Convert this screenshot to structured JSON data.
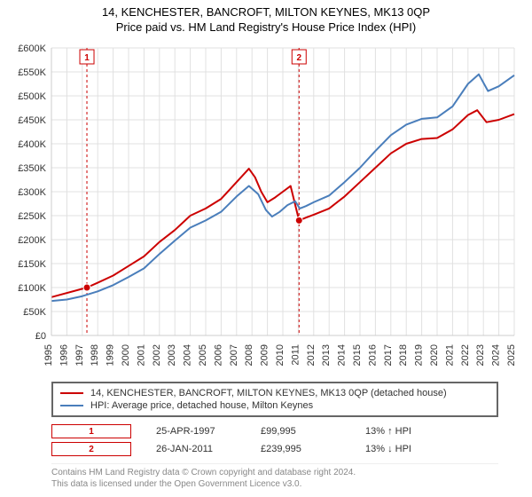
{
  "title": {
    "line1": "14, KENCHESTER, BANCROFT, MILTON KEYNES, MK13 0QP",
    "line2": "Price paid vs. HM Land Registry's House Price Index (HPI)"
  },
  "chart": {
    "type": "line",
    "background_color": "#ffffff",
    "plot_bg": "#ffffff",
    "grid_color": "#e0e0e0",
    "axis_color": "#cccccc",
    "xlim": [
      1995,
      2025
    ],
    "ylim": [
      0,
      600000
    ],
    "ytick_step": 50000,
    "yticks_labels": [
      "£0",
      "£50K",
      "£100K",
      "£150K",
      "£200K",
      "£250K",
      "£300K",
      "£350K",
      "£400K",
      "£450K",
      "£500K",
      "£550K",
      "£600K"
    ],
    "xticks": [
      1995,
      1996,
      1997,
      1998,
      1999,
      2000,
      2001,
      2002,
      2003,
      2004,
      2005,
      2006,
      2007,
      2008,
      2009,
      2010,
      2011,
      2012,
      2013,
      2014,
      2015,
      2016,
      2017,
      2018,
      2019,
      2020,
      2021,
      2022,
      2023,
      2024,
      2025
    ],
    "label_fontsize": 11,
    "line_width": 2,
    "series": [
      {
        "name": "price_paid",
        "color": "#cc0000",
        "points": [
          [
            1995,
            80000
          ],
          [
            1997.3,
            99995
          ],
          [
            1998,
            110000
          ],
          [
            1999,
            125000
          ],
          [
            2000,
            145000
          ],
          [
            2001,
            165000
          ],
          [
            2002,
            195000
          ],
          [
            2003,
            220000
          ],
          [
            2004,
            250000
          ],
          [
            2005,
            265000
          ],
          [
            2006,
            285000
          ],
          [
            2007,
            320000
          ],
          [
            2007.8,
            348000
          ],
          [
            2008.2,
            330000
          ],
          [
            2008.6,
            300000
          ],
          [
            2009,
            278000
          ],
          [
            2009.5,
            288000
          ],
          [
            2010,
            300000
          ],
          [
            2010.5,
            312000
          ],
          [
            2011.05,
            239995
          ],
          [
            2011.5,
            246000
          ],
          [
            2012,
            252000
          ],
          [
            2013,
            265000
          ],
          [
            2014,
            290000
          ],
          [
            2015,
            320000
          ],
          [
            2016,
            350000
          ],
          [
            2017,
            380000
          ],
          [
            2018,
            400000
          ],
          [
            2019,
            410000
          ],
          [
            2020,
            412000
          ],
          [
            2021,
            430000
          ],
          [
            2022,
            460000
          ],
          [
            2022.6,
            470000
          ],
          [
            2023.2,
            445000
          ],
          [
            2024,
            450000
          ],
          [
            2025,
            462000
          ]
        ]
      },
      {
        "name": "hpi",
        "color": "#4a7ebb",
        "points": [
          [
            1995,
            72000
          ],
          [
            1996,
            75000
          ],
          [
            1997,
            82000
          ],
          [
            1998,
            92000
          ],
          [
            1999,
            105000
          ],
          [
            2000,
            122000
          ],
          [
            2001,
            140000
          ],
          [
            2002,
            170000
          ],
          [
            2003,
            198000
          ],
          [
            2004,
            225000
          ],
          [
            2005,
            240000
          ],
          [
            2006,
            258000
          ],
          [
            2007,
            290000
          ],
          [
            2007.8,
            312000
          ],
          [
            2008.4,
            295000
          ],
          [
            2008.9,
            262000
          ],
          [
            2009.3,
            248000
          ],
          [
            2009.8,
            258000
          ],
          [
            2010.3,
            272000
          ],
          [
            2010.8,
            280000
          ],
          [
            2011.1,
            265000
          ],
          [
            2011.5,
            270000
          ],
          [
            2012,
            278000
          ],
          [
            2013,
            292000
          ],
          [
            2014,
            320000
          ],
          [
            2015,
            350000
          ],
          [
            2016,
            385000
          ],
          [
            2017,
            418000
          ],
          [
            2018,
            440000
          ],
          [
            2019,
            452000
          ],
          [
            2020,
            455000
          ],
          [
            2021,
            478000
          ],
          [
            2022,
            525000
          ],
          [
            2022.7,
            545000
          ],
          [
            2023.3,
            510000
          ],
          [
            2024,
            520000
          ],
          [
            2025,
            543000
          ]
        ]
      }
    ],
    "vlines": [
      {
        "x": 1997.3,
        "color": "#cc0000",
        "dash": "3,3",
        "label": "1"
      },
      {
        "x": 2011.05,
        "color": "#cc0000",
        "dash": "3,3",
        "label": "2"
      }
    ],
    "sale_markers": [
      {
        "x": 1997.3,
        "y": 99995,
        "color": "#cc0000"
      },
      {
        "x": 2011.05,
        "y": 239995,
        "color": "#cc0000"
      }
    ]
  },
  "legend": {
    "items": [
      {
        "color": "#cc0000",
        "label": "14, KENCHESTER, BANCROFT, MILTON KEYNES, MK13 0QP (detached house)"
      },
      {
        "color": "#4a7ebb",
        "label": "HPI: Average price, detached house, Milton Keynes"
      }
    ]
  },
  "markers": [
    {
      "badge": "1",
      "date": "25-APR-1997",
      "price": "£99,995",
      "delta": "13% ↑ HPI"
    },
    {
      "badge": "2",
      "date": "26-JAN-2011",
      "price": "£239,995",
      "delta": "13% ↓ HPI"
    }
  ],
  "footer": {
    "line1": "Contains HM Land Registry data © Crown copyright and database right 2024.",
    "line2": "This data is licensed under the Open Government Licence v3.0."
  }
}
